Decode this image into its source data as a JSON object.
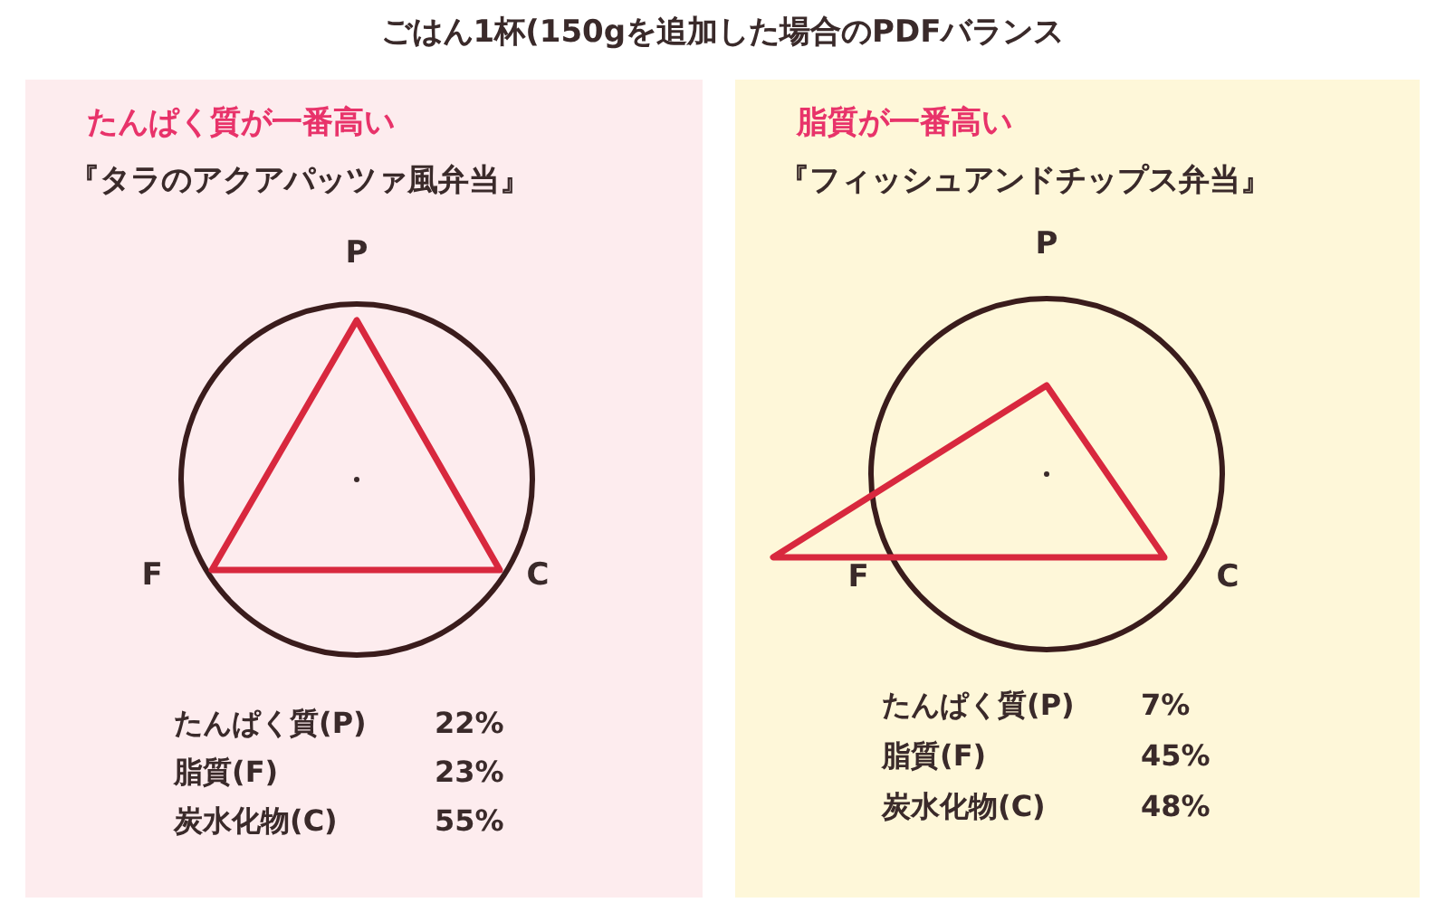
{
  "chart_data": [
    {
      "type": "other",
      "title": "ごはん1杯(150gを追加した場合のPDFバランス"
    },
    {
      "type": "other",
      "title": "たんぱく質が一番高い",
      "subtitle": "『タラのアクアパッツァ風弁当』",
      "categories": [
        "たんぱく質(P)",
        "脂質(F)",
        "炭水化物(C)"
      ],
      "values": [
        22,
        23,
        55
      ],
      "value_labels": [
        "22%",
        "23%",
        "55%"
      ],
      "annotations": [
        "P",
        "F",
        "C"
      ]
    },
    {
      "type": "other",
      "title": "脂質が一番高い",
      "subtitle": "『フィッシュアンドチップス弁当』",
      "categories": [
        "たんぱく質(P)",
        "脂質(F)",
        "炭水化物(C)"
      ],
      "values": [
        7,
        45,
        48
      ],
      "value_labels": [
        "7%",
        "45%",
        "48%"
      ],
      "annotations": [
        "P",
        "F",
        "C"
      ]
    }
  ]
}
